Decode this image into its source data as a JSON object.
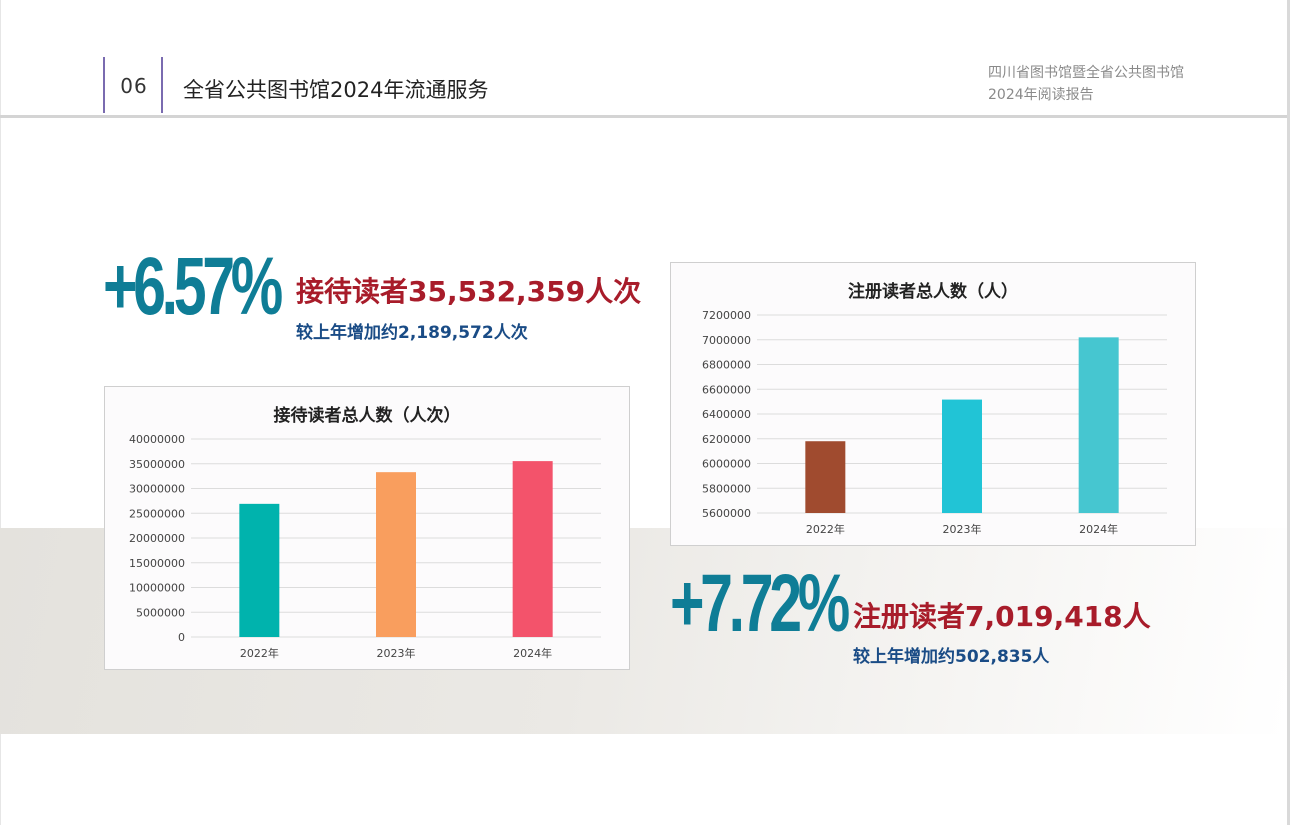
{
  "header": {
    "page_number": "06",
    "title": "全省公共图书馆2024年流通服务",
    "report_line1": "四川省图书馆暨全省公共图书馆",
    "report_line2": "2024年阅读报告"
  },
  "stat_visitors": {
    "percent": "+6.57%",
    "headline": "接待读者35,532,359人次",
    "sub": "较上年增加约2,189,572人次"
  },
  "stat_registered": {
    "percent": "+7.72%",
    "headline": "注册读者7,019,418人",
    "sub": "较上年增加约502,835人"
  },
  "colors": {
    "accent_teal": "#0f7d96",
    "accent_red": "#a81c2a",
    "accent_blue": "#1a4c86"
  },
  "chart_data": [
    {
      "type": "bar",
      "title": "接待读者总人数（人次）",
      "categories": [
        "2022年",
        "2023年",
        "2024年"
      ],
      "values": [
        26900000,
        33300000,
        35532359
      ],
      "colors": [
        "#00b3ad",
        "#f99e5e",
        "#f3536b"
      ],
      "ylim": [
        0,
        40000000
      ],
      "yticks": [
        0,
        5000000,
        10000000,
        15000000,
        20000000,
        25000000,
        30000000,
        35000000,
        40000000
      ],
      "grid": true,
      "legend": "none"
    },
    {
      "type": "bar",
      "title": "注册读者总人数（人）",
      "categories": [
        "2022年",
        "2023年",
        "2024年"
      ],
      "values": [
        6180000,
        6516583,
        7019418
      ],
      "colors": [
        "#a04b2f",
        "#21c4d6",
        "#46c6d0"
      ],
      "ylim": [
        5600000,
        7200000
      ],
      "yticks": [
        5600000,
        5800000,
        6000000,
        6200000,
        6400000,
        6600000,
        6800000,
        7000000,
        7200000
      ],
      "grid": true,
      "legend": "none"
    }
  ]
}
